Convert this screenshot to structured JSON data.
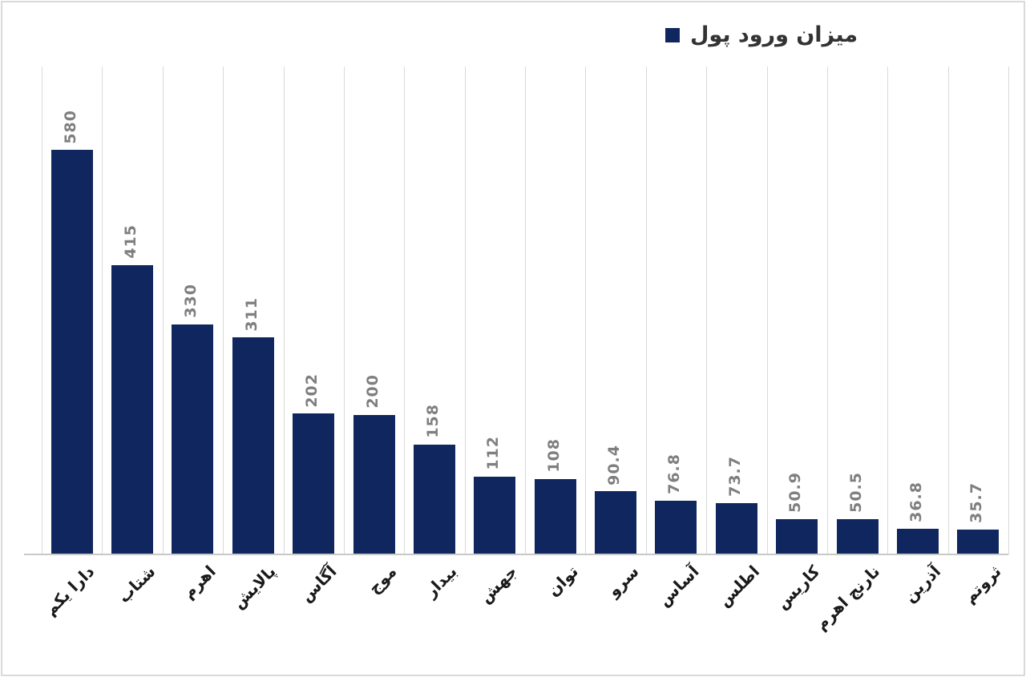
{
  "chart_data": {
    "type": "bar",
    "title": "",
    "legend": {
      "label": "میزان ورود پول",
      "position": "top-right"
    },
    "categories": [
      "دارا یکم",
      "شتاب",
      "اهرم",
      "پالایش",
      "آگاس",
      "موج",
      "بیدار",
      "جهش",
      "توان",
      "سرو",
      "آساس",
      "اطلس",
      "کاریس",
      "نارنج اهرم",
      "آذرین",
      "ثروتم"
    ],
    "values": [
      580,
      415,
      330,
      311,
      202,
      200,
      158,
      112,
      108,
      90.4,
      76.8,
      73.7,
      50.9,
      50.5,
      36.8,
      35.7
    ],
    "value_labels": [
      "580",
      "415",
      "330",
      "311",
      "202",
      "200",
      "158",
      "112",
      "108",
      "90.4",
      "76.8",
      "73.7",
      "50.9",
      "50.5",
      "36.8",
      "35.7"
    ],
    "xlabel": "",
    "ylabel": "",
    "ylim": [
      0,
      700
    ],
    "grid": "vertical-category-gridlines",
    "value_label_rotation": "90deg-counterclockwise",
    "category_label_rotation": "45deg",
    "colors": {
      "bar": "#10265f",
      "gridline": "#d9d9d9",
      "axis_line": "#c9c9c9",
      "value_label": "#7f7f7f",
      "category_label": "#1a1a1a",
      "legend_text": "#333333",
      "background": "#ffffff",
      "border": "#d9d9d9"
    }
  }
}
